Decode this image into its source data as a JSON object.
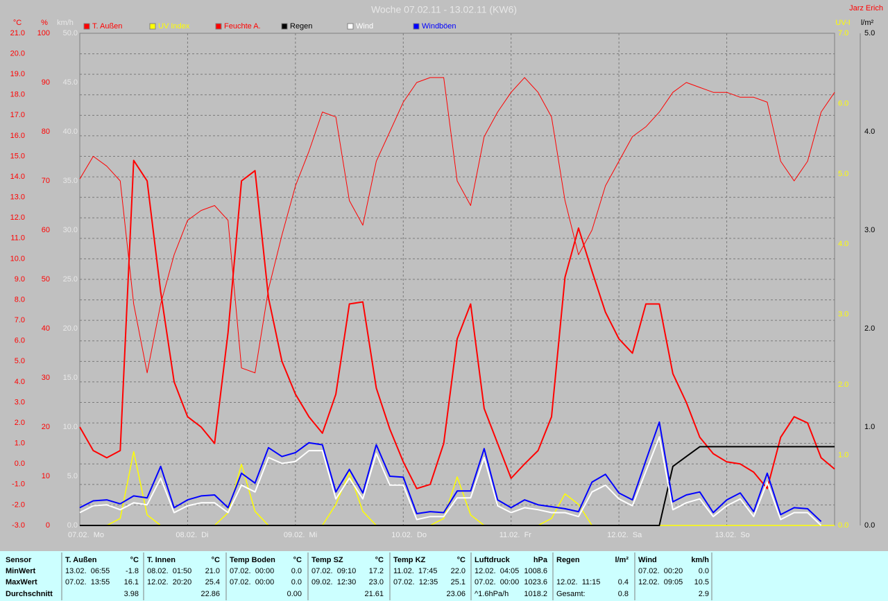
{
  "chart_data": {
    "type": "line",
    "title": "Woche 07.02.11 - 13.02.11 (KW6)",
    "author": "Jarz Erich",
    "x": [
      0,
      3,
      6,
      9,
      12,
      15,
      18,
      21,
      24,
      27,
      30,
      33,
      36,
      39,
      42,
      45,
      48,
      51,
      54,
      57,
      60,
      63,
      66,
      69,
      72,
      75,
      78,
      81,
      84,
      87,
      90,
      93,
      96,
      99,
      102,
      105,
      108,
      111,
      114,
      117,
      120,
      123,
      126,
      129,
      132,
      135,
      138,
      141,
      144,
      147,
      150,
      153,
      156,
      159,
      162,
      165,
      168
    ],
    "xlim": [
      0,
      168
    ],
    "xticks": [
      {
        "value": 0,
        "label": "07.02.  Mo"
      },
      {
        "value": 24,
        "label": "08.02.  Di"
      },
      {
        "value": 48,
        "label": "09.02.  Mi"
      },
      {
        "value": 72,
        "label": "10.02.  Do"
      },
      {
        "value": 96,
        "label": "11.02.  Fr"
      },
      {
        "value": 120,
        "label": "12.02.  Sa"
      },
      {
        "value": 144,
        "label": "13.02.  So"
      }
    ],
    "ylabel": "°C",
    "ycolor": "#ff0000",
    "ylim": [
      -3,
      21
    ],
    "yticks": [
      {
        "value": -3,
        "label": "-3.0"
      },
      {
        "value": -2,
        "label": "-2.0"
      },
      {
        "value": -1,
        "label": "-1.0"
      },
      {
        "value": 0,
        "label": "0.0"
      },
      {
        "value": 1,
        "label": "1.0"
      },
      {
        "value": 2,
        "label": "2.0"
      },
      {
        "value": 3,
        "label": "3.0"
      },
      {
        "value": 4,
        "label": "4.0"
      },
      {
        "value": 5,
        "label": "5.0"
      },
      {
        "value": 6,
        "label": "6.0"
      },
      {
        "value": 7,
        "label": "7.0"
      },
      {
        "value": 8,
        "label": "8.0"
      },
      {
        "value": 9,
        "label": "9.0"
      },
      {
        "value": 10,
        "label": "10.0"
      },
      {
        "value": 11,
        "label": "11.0"
      },
      {
        "value": 12,
        "label": "12.0"
      },
      {
        "value": 13,
        "label": "13.0"
      },
      {
        "value": 14,
        "label": "14.0"
      },
      {
        "value": 15,
        "label": "15.0"
      },
      {
        "value": 16,
        "label": "16.0"
      },
      {
        "value": 17,
        "label": "17.0"
      },
      {
        "value": 18,
        "label": "18.0"
      },
      {
        "value": 19,
        "label": "19.0"
      },
      {
        "value": 20,
        "label": "20.0"
      },
      {
        "value": 21,
        "label": "21.0"
      }
    ],
    "y2label": "%",
    "y2color": "#ff0000",
    "y2lim": [
      0,
      100
    ],
    "y2ticks": [
      0,
      10,
      20,
      30,
      40,
      50,
      60,
      70,
      80,
      90,
      100
    ],
    "y3label": "km/h",
    "y3color": "#e8e8e8",
    "y3lim": [
      0,
      50
    ],
    "y3ticks": [
      {
        "value": 0,
        "label": "0.0"
      },
      {
        "value": 5,
        "label": "5.0"
      },
      {
        "value": 10,
        "label": "10.0"
      },
      {
        "value": 15,
        "label": "15.0"
      },
      {
        "value": 20,
        "label": "20.0"
      },
      {
        "value": 25,
        "label": "25.0"
      },
      {
        "value": 30,
        "label": "30.0"
      },
      {
        "value": 35,
        "label": "35.0"
      },
      {
        "value": 40,
        "label": "40.0"
      },
      {
        "value": 45,
        "label": "45.0"
      },
      {
        "value": 50,
        "label": "50.0"
      }
    ],
    "y4label": "UV-I",
    "y4color": "#ffff00",
    "y4lim": [
      0,
      7
    ],
    "y4ticks": [
      {
        "value": 0,
        "label": "0.0"
      },
      {
        "value": 1,
        "label": "1.0"
      },
      {
        "value": 2,
        "label": "2.0"
      },
      {
        "value": 3,
        "label": "3.0"
      },
      {
        "value": 4,
        "label": "4.0"
      },
      {
        "value": 5,
        "label": "5.0"
      },
      {
        "value": 6,
        "label": "6.0"
      },
      {
        "value": 7,
        "label": "7.0"
      }
    ],
    "y5label": "l/m²",
    "y5color": "#000000",
    "y5lim": [
      0,
      5
    ],
    "y5ticks": [
      {
        "value": 0,
        "label": "0.0"
      },
      {
        "value": 1,
        "label": "1.0"
      },
      {
        "value": 2,
        "label": "2.0"
      },
      {
        "value": 3,
        "label": "3.0"
      },
      {
        "value": 4,
        "label": "4.0"
      },
      {
        "value": 5,
        "label": "5.0"
      }
    ],
    "grid": true,
    "series": [
      {
        "name": "T. Außen",
        "color": "#ff0000",
        "axis": "y",
        "line_width": 2,
        "values": [
          1.8,
          0.65,
          0.3,
          0.65,
          14.8,
          13.8,
          8.4,
          4.0,
          2.3,
          1.8,
          1.0,
          6.4,
          13.8,
          14.3,
          8.1,
          5.0,
          3.4,
          2.3,
          1.5,
          3.4,
          7.8,
          7.9,
          3.7,
          1.7,
          0.1,
          -1.2,
          -1.0,
          1.0,
          6.1,
          7.8,
          2.7,
          1.0,
          -0.7,
          0.0,
          0.65,
          2.3,
          9.1,
          11.5,
          9.4,
          7.4,
          6.1,
          5.4,
          7.8,
          7.8,
          4.4,
          3.0,
          1.3,
          0.5,
          0.1,
          0.0,
          -0.4,
          -1.2,
          1.3,
          2.3,
          2.0,
          0.3,
          -0.25
        ]
      },
      {
        "name": "UV Index",
        "color": "#ffff00",
        "axis": "y4",
        "line_width": 1.5,
        "values": [
          0,
          0,
          0,
          0.1,
          1.05,
          0.15,
          0,
          0,
          0,
          0,
          0,
          0.18,
          0.87,
          0.2,
          0,
          0,
          0,
          0,
          0,
          0.3,
          0.75,
          0.2,
          0,
          0,
          0,
          0,
          0,
          0.1,
          0.69,
          0.15,
          0,
          0,
          0,
          0,
          0,
          0.1,
          0.45,
          0.3,
          0,
          0,
          0,
          0,
          0,
          0,
          0,
          0,
          0,
          0,
          0,
          0,
          0,
          0,
          0,
          0,
          0,
          0,
          0
        ]
      },
      {
        "name": "Feuchte A.",
        "color": "#ff0000",
        "axis": "y2",
        "line_width": 1,
        "values": [
          70.4,
          75,
          73,
          70,
          45,
          31,
          45,
          55,
          62,
          64,
          65,
          62,
          32,
          31,
          48,
          59,
          69,
          76,
          84,
          83,
          66,
          61,
          74,
          80,
          86,
          90,
          91,
          91,
          70,
          65,
          79,
          84,
          88,
          91,
          88,
          83,
          66,
          55,
          60,
          69,
          74,
          79,
          81,
          84,
          88,
          90,
          89,
          88,
          88,
          87,
          87,
          86,
          74,
          70,
          74,
          84,
          88
        ]
      },
      {
        "name": "Regen",
        "color": "#000000",
        "axis": "y5",
        "line_width": 2,
        "values": [
          0,
          0,
          0,
          0,
          0,
          0,
          0,
          0,
          0,
          0,
          0,
          0,
          0,
          0,
          0,
          0,
          0,
          0,
          0,
          0,
          0,
          0,
          0,
          0,
          0,
          0,
          0,
          0,
          0,
          0,
          0,
          0,
          0,
          0,
          0,
          0,
          0,
          0,
          0,
          0,
          0,
          0,
          0,
          0,
          0.6,
          0.7,
          0.8,
          0.8,
          0.8,
          0.8,
          0.8,
          0.8,
          0.8,
          0.8,
          0.8,
          0.8,
          0.8
        ]
      },
      {
        "name": "Windböen",
        "color": "#0000ff",
        "axis": "y3",
        "line_width": 2,
        "values": [
          1.8,
          2.5,
          2.6,
          2.2,
          3.0,
          2.8,
          6.0,
          1.8,
          2.6,
          3.0,
          3.1,
          1.8,
          5.3,
          4.3,
          7.9,
          7.0,
          7.4,
          8.4,
          8.2,
          3.4,
          5.7,
          3.3,
          8.2,
          5.0,
          4.9,
          1.2,
          1.4,
          1.3,
          3.5,
          3.5,
          7.8,
          2.6,
          1.8,
          2.6,
          2.1,
          1.9,
          1.7,
          1.4,
          4.4,
          5.2,
          3.3,
          2.6,
          6.6,
          10.5,
          2.4,
          3.1,
          3.4,
          1.3,
          2.6,
          3.3,
          1.4,
          5.3,
          1.1,
          1.8,
          1.7,
          0.4,
          null
        ]
      },
      {
        "name": "Wind",
        "color": "#ffffff",
        "axis": "y3",
        "line_width": 2,
        "values": [
          1.3,
          2.0,
          2.1,
          1.6,
          2.3,
          2.1,
          4.8,
          1.3,
          2.0,
          2.3,
          2.3,
          1.3,
          4.1,
          3.4,
          6.9,
          6.3,
          6.5,
          7.6,
          7.6,
          2.7,
          4.8,
          2.7,
          7.3,
          4.1,
          4.1,
          0.6,
          0.9,
          0.9,
          2.8,
          2.8,
          6.9,
          2.0,
          1.3,
          1.8,
          1.6,
          1.3,
          1.3,
          0.9,
          3.4,
          4.1,
          2.7,
          2.0,
          5.5,
          9.0,
          1.6,
          2.3,
          2.7,
          0.9,
          2.0,
          2.7,
          0.9,
          4.4,
          0.6,
          1.3,
          1.3,
          0.0,
          null
        ]
      }
    ],
    "legend_order": [
      "T. Außen",
      "UV Index",
      "Feuchte A.",
      "Regen",
      "Wind",
      "Windböen"
    ],
    "stats": {
      "sensor_label": "Sensor",
      "row_labels": [
        "MinWert",
        "MaxWert",
        "Durchschnitt"
      ],
      "columns": [
        {
          "name": "T. Außen",
          "unit": "°C",
          "rows": [
            [
              "13.02.  06:55",
              "-1.8"
            ],
            [
              "07.02.  13:55",
              "16.1"
            ],
            [
              "3.98"
            ]
          ]
        },
        {
          "name": "T. Innen",
          "unit": "°C",
          "rows": [
            [
              "08.02.  01:50",
              "21.0"
            ],
            [
              "12.02.  20:20",
              "25.4"
            ],
            [
              "22.86"
            ]
          ]
        },
        {
          "name": "Temp Boden",
          "unit": "°C",
          "rows": [
            [
              "07.02.  00:00",
              "0.0"
            ],
            [
              "07.02.  00:00",
              "0.0"
            ],
            [
              "0.00"
            ]
          ]
        },
        {
          "name": "Temp SZ",
          "unit": "°C",
          "rows": [
            [
              "07.02.  09:10",
              "17.2"
            ],
            [
              "09.02.  12:30",
              "23.0"
            ],
            [
              "21.61"
            ]
          ]
        },
        {
          "name": "Temp KZ",
          "unit": "°C",
          "rows": [
            [
              "11.02.  17:45",
              "22.0"
            ],
            [
              "07.02.  12:35",
              "25.1"
            ],
            [
              "23.06"
            ]
          ]
        },
        {
          "name": "Luftdruck",
          "unit": "hPa",
          "rows": [
            [
              "12.02.  04:05",
              "1008.6"
            ],
            [
              "07.02.  00:00",
              "1023.6"
            ],
            [
              "^1.6hPa/h",
              "1018.2"
            ]
          ]
        },
        {
          "name": "Regen",
          "unit": "l/m²",
          "rows": [
            null,
            [
              "12.02.  11:15",
              "0.4"
            ],
            [
              "Gesamt:",
              "0.8"
            ]
          ]
        },
        {
          "name": "Wind",
          "unit": "km/h",
          "rows": [
            [
              "07.02.  00:20",
              "0.0"
            ],
            [
              "12.02.  09:05",
              "10.5"
            ],
            [
              "2.9"
            ]
          ]
        }
      ]
    }
  }
}
